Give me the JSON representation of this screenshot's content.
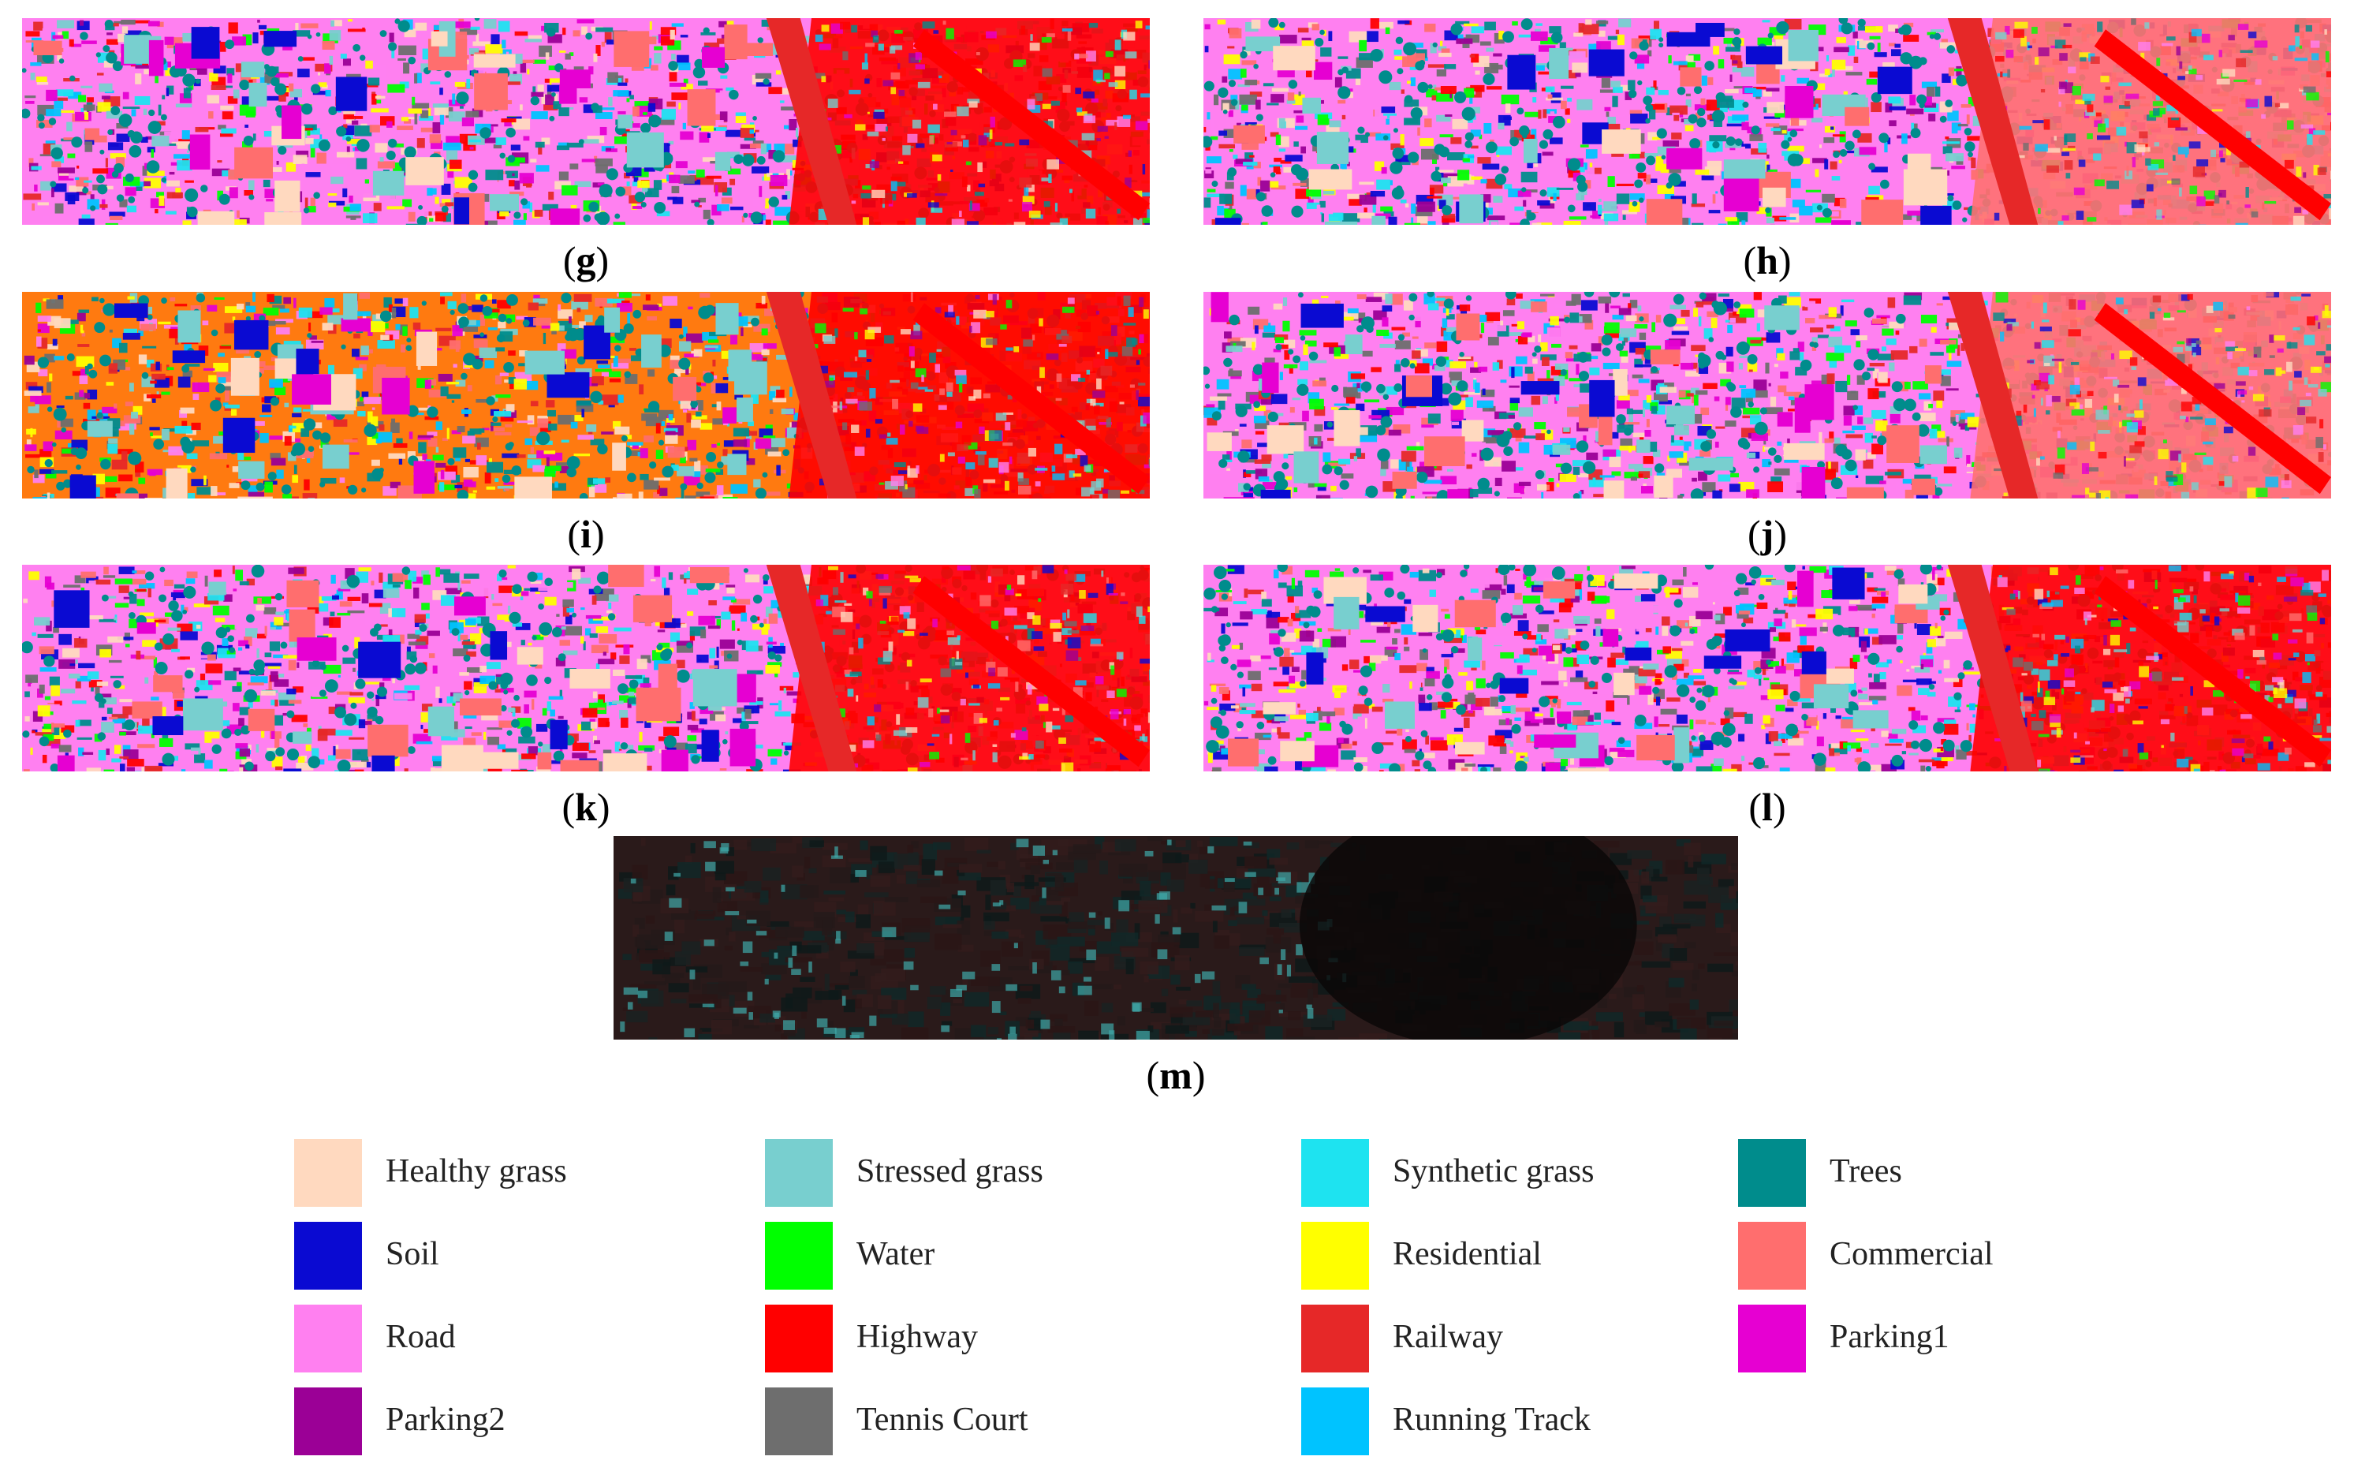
{
  "panels": [
    {
      "id": "g",
      "label": "g",
      "dominant": "#ff0000",
      "base": "#ff80f0"
    },
    {
      "id": "h",
      "label": "h",
      "dominant": "#ff7070",
      "base": "#ff80f0"
    },
    {
      "id": "i",
      "label": "i",
      "dominant": "#ff0000",
      "base": "#ff7a10"
    },
    {
      "id": "j",
      "label": "j",
      "dominant": "#ff7070",
      "base": "#ff80f0"
    },
    {
      "id": "k",
      "label": "k",
      "dominant": "#ff0000",
      "base": "#ff80f0"
    },
    {
      "id": "l",
      "label": "l",
      "dominant": "#ff0000",
      "base": "#ff80f0"
    },
    {
      "id": "m",
      "label": "m",
      "dominant": "#151010",
      "base": "#2a1a1a"
    }
  ],
  "legend": [
    {
      "label": "Healthy grass",
      "color": "#ffd9bf"
    },
    {
      "label": "Stressed grass",
      "color": "#78cfcf"
    },
    {
      "label": "Synthetic grass",
      "color": "#1ee3f0"
    },
    {
      "label": "Trees",
      "color": "#008c8c"
    },
    {
      "label": "Soil",
      "color": "#0a0ad2"
    },
    {
      "label": "Water",
      "color": "#00ff00"
    },
    {
      "label": "Residential",
      "color": "#ffff00"
    },
    {
      "label": "Commercial",
      "color": "#ff6e6e"
    },
    {
      "label": "Road",
      "color": "#ff80f0"
    },
    {
      "label": "Highway",
      "color": "#ff0000"
    },
    {
      "label": "Railway",
      "color": "#e62828"
    },
    {
      "label": "Parking1",
      "color": "#e600d2"
    },
    {
      "label": "Parking2",
      "color": "#9b0096"
    },
    {
      "label": "Tennis Court",
      "color": "#6e6e6e"
    },
    {
      "label": "Running Track",
      "color": "#00c3ff"
    }
  ]
}
